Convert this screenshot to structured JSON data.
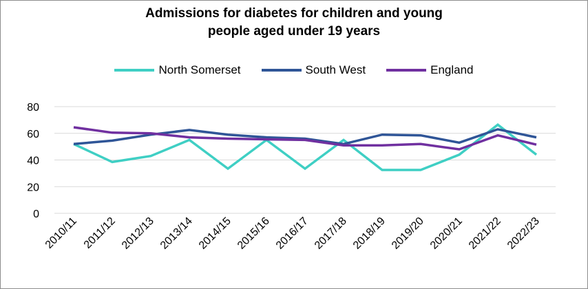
{
  "chart_data": {
    "type": "line",
    "title_lines": [
      "Admissions for diabetes for children and young",
      "people aged under 19 years"
    ],
    "categories": [
      "2010/11",
      "2011/12",
      "2012/13",
      "2013/14",
      "2014/15",
      "2015/16",
      "2016/17",
      "2017/18",
      "2018/19",
      "2019/20",
      "2020/21",
      "2021/22",
      "2022/23"
    ],
    "ylim": [
      0,
      80
    ],
    "yticks": [
      0,
      20,
      40,
      60,
      80
    ],
    "grid": true,
    "legend_position": "top",
    "series": [
      {
        "name": "North Somerset",
        "color": "#3fcfc4",
        "values": [
          52,
          38.5,
          43,
          55,
          33.5,
          55,
          33.5,
          55,
          32.5,
          32.5,
          44,
          66.5,
          44
        ]
      },
      {
        "name": "South West",
        "color": "#2f5597",
        "values": [
          52,
          54.5,
          59,
          62.5,
          59,
          57,
          56,
          52,
          59,
          58.5,
          53,
          63,
          57
        ]
      },
      {
        "name": "England",
        "color": "#7030a0",
        "values": [
          64.5,
          60.5,
          60,
          57,
          56,
          55.5,
          55,
          51,
          51,
          52,
          48,
          58.5,
          51.5
        ]
      }
    ]
  }
}
